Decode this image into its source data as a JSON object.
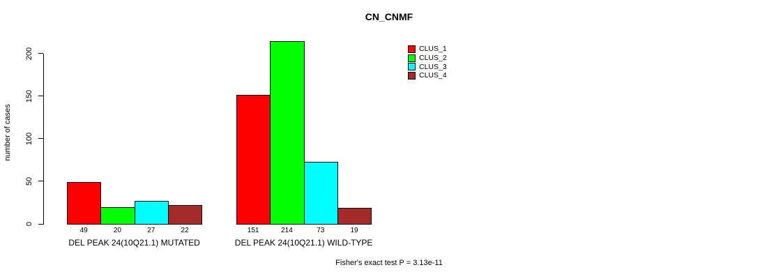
{
  "chart_data": {
    "type": "bar",
    "title": "CN_CNMF",
    "ylabel": "number of cases",
    "xlabel": "",
    "ylim": [
      0,
      200
    ],
    "yticks": [
      0,
      50,
      100,
      150,
      200
    ],
    "grid": false,
    "legend_position": "top-right",
    "categories": [
      "DEL PEAK 24(10Q21.1) MUTATED",
      "DEL PEAK 24(10Q21.1) WILD-TYPE"
    ],
    "series": [
      {
        "name": "CLUS_1",
        "color": "#ff0000",
        "values": [
          49,
          151
        ]
      },
      {
        "name": "CLUS_2",
        "color": "#00ff00",
        "values": [
          20,
          214
        ]
      },
      {
        "name": "CLUS_3",
        "color": "#00ffff",
        "values": [
          27,
          73
        ]
      },
      {
        "name": "CLUS_4",
        "color": "#a52a2a",
        "values": [
          22,
          19
        ]
      }
    ],
    "bar_value_labels": [
      [
        49,
        20,
        27,
        22
      ],
      [
        151,
        214,
        73,
        19
      ]
    ],
    "annotation": "Fisher's exact test P = 3.13e-11"
  },
  "colors": {
    "axis": "#000000",
    "text": "#000000",
    "background": "#ffffff"
  }
}
